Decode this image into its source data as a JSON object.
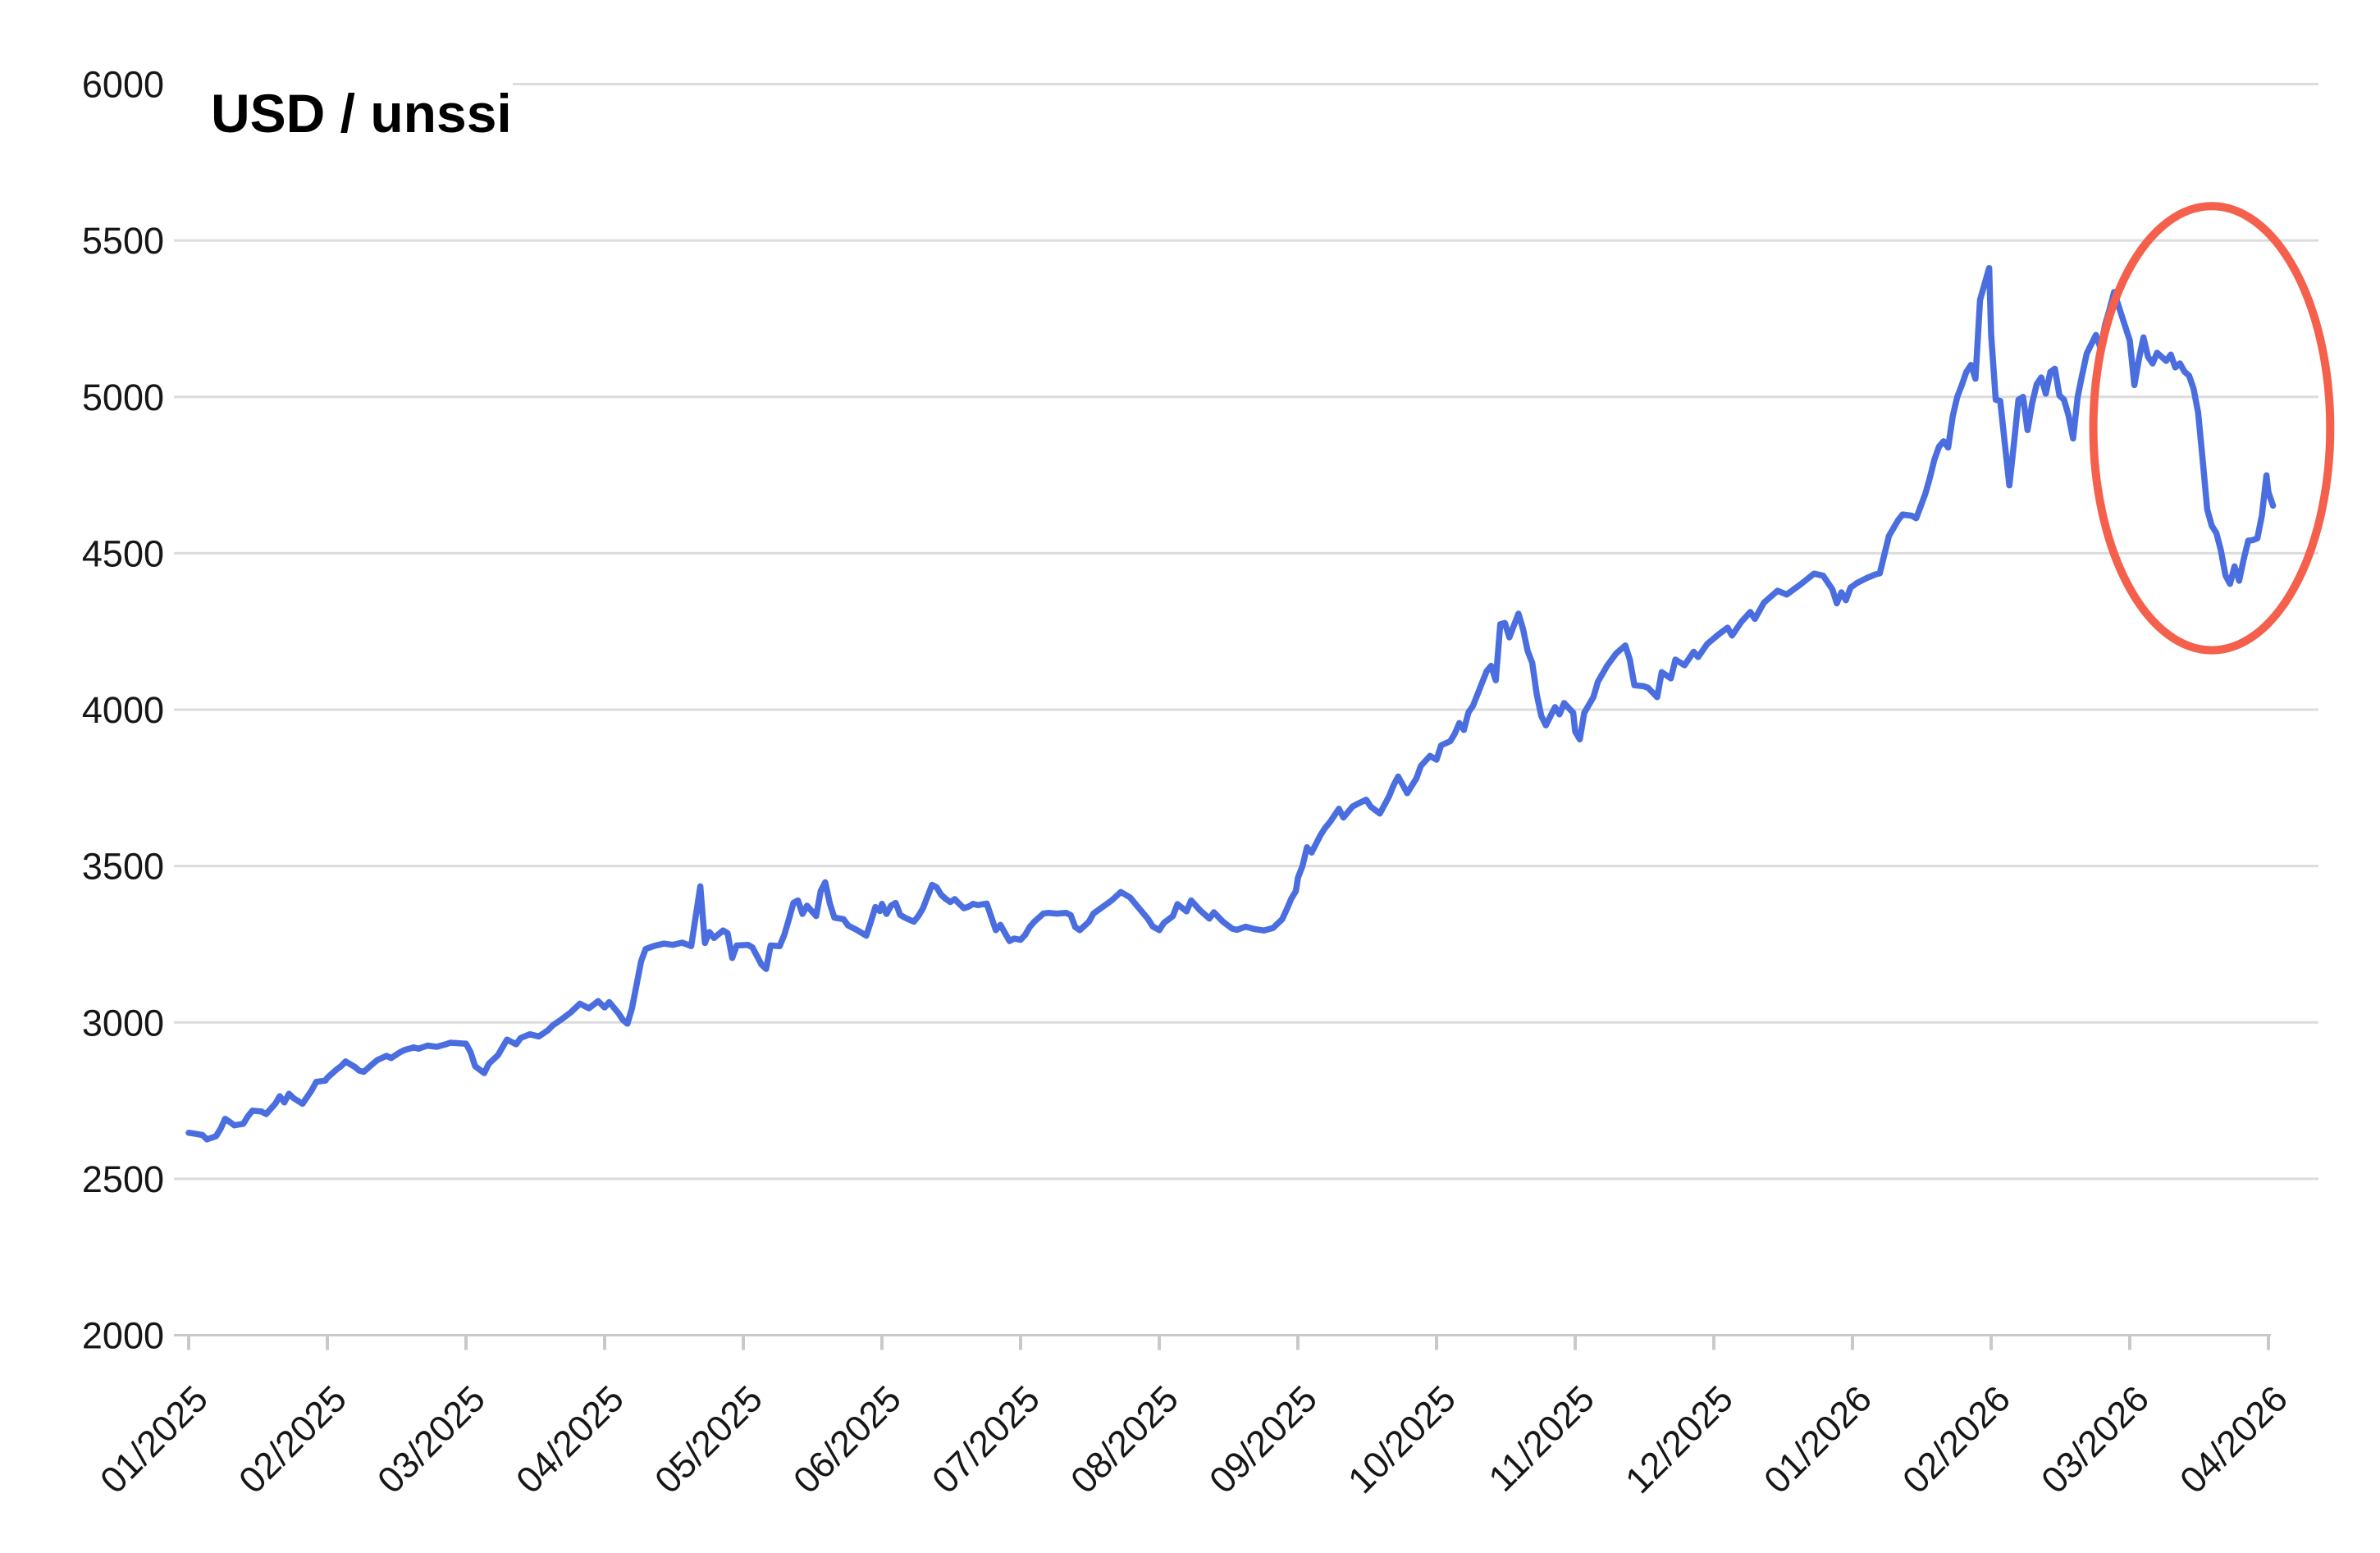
{
  "title": "USD / unssi",
  "colors": {
    "line": "#4a6ee0",
    "annotation": "#f4604c",
    "grid": "#dcdcdc",
    "axis": "#c9c9c9",
    "label_text": "#161616",
    "title_text": "#000000",
    "background": "#ffffff"
  },
  "chart_data": {
    "type": "line",
    "title": "USD / unssi",
    "xlabel": "",
    "ylabel": "",
    "ylim": [
      2000,
      6000
    ],
    "y_ticks": [
      6000,
      5500,
      5000,
      4500,
      4000,
      3500,
      3000,
      2500,
      2000
    ],
    "x_tick_labels": [
      "01/2025",
      "02/2025",
      "03/2025",
      "04/2025",
      "05/2025",
      "06/2025",
      "07/2025",
      "08/2025",
      "09/2025",
      "10/2025",
      "11/2025",
      "12/2025",
      "01/2026",
      "02/2026",
      "03/2026",
      "04/2026"
    ],
    "grid": "horizontal",
    "legend": "none",
    "annotation_ellipse": {
      "center_date": "2026-03-19",
      "center_value": 4900,
      "radius_days": 26,
      "radius_value": 710,
      "color": "#f4604c",
      "stroke_width": 10
    },
    "points": [
      [
        "2025-01-01",
        2647
      ],
      [
        "2025-01-02",
        2645
      ],
      [
        "2025-01-04",
        2640
      ],
      [
        "2025-01-05",
        2626
      ],
      [
        "2025-01-07",
        2636
      ],
      [
        "2025-01-08",
        2660
      ],
      [
        "2025-01-09",
        2692
      ],
      [
        "2025-01-10",
        2682
      ],
      [
        "2025-01-11",
        2671
      ],
      [
        "2025-01-13",
        2676
      ],
      [
        "2025-01-14",
        2700
      ],
      [
        "2025-01-15",
        2718
      ],
      [
        "2025-01-17",
        2715
      ],
      [
        "2025-01-18",
        2707
      ],
      [
        "2025-01-20",
        2740
      ],
      [
        "2025-01-21",
        2764
      ],
      [
        "2025-01-22",
        2744
      ],
      [
        "2025-01-23",
        2772
      ],
      [
        "2025-01-24",
        2758
      ],
      [
        "2025-01-26",
        2740
      ],
      [
        "2025-01-28",
        2783
      ],
      [
        "2025-01-29",
        2810
      ],
      [
        "2025-01-31",
        2814
      ],
      [
        "2025-02-01",
        2823
      ],
      [
        "2025-02-03",
        2849
      ],
      [
        "2025-02-04",
        2860
      ],
      [
        "2025-02-05",
        2875
      ],
      [
        "2025-02-07",
        2858
      ],
      [
        "2025-02-08",
        2846
      ],
      [
        "2025-02-09",
        2842
      ],
      [
        "2025-02-11",
        2868
      ],
      [
        "2025-02-12",
        2880
      ],
      [
        "2025-02-14",
        2893
      ],
      [
        "2025-02-15",
        2886
      ],
      [
        "2025-02-17",
        2905
      ],
      [
        "2025-02-18",
        2912
      ],
      [
        "2025-02-20",
        2920
      ],
      [
        "2025-02-21",
        2916
      ],
      [
        "2025-02-23",
        2926
      ],
      [
        "2025-02-25",
        2922
      ],
      [
        "2025-02-27",
        2930
      ],
      [
        "2025-02-28",
        2935
      ],
      [
        "2025-03-01",
        2932
      ],
      [
        "2025-03-02",
        2905
      ],
      [
        "2025-03-03",
        2860
      ],
      [
        "2025-03-05",
        2838
      ],
      [
        "2025-03-06",
        2868
      ],
      [
        "2025-03-08",
        2895
      ],
      [
        "2025-03-09",
        2920
      ],
      [
        "2025-03-10",
        2945
      ],
      [
        "2025-03-12",
        2930
      ],
      [
        "2025-03-13",
        2950
      ],
      [
        "2025-03-15",
        2962
      ],
      [
        "2025-03-17",
        2955
      ],
      [
        "2025-03-19",
        2975
      ],
      [
        "2025-03-20",
        2990
      ],
      [
        "2025-03-22",
        3010
      ],
      [
        "2025-03-24",
        3032
      ],
      [
        "2025-03-26",
        3060
      ],
      [
        "2025-03-28",
        3045
      ],
      [
        "2025-03-30",
        3068
      ],
      [
        "2025-04-01",
        3048
      ],
      [
        "2025-04-02",
        3065
      ],
      [
        "2025-04-04",
        3030
      ],
      [
        "2025-04-05",
        3008
      ],
      [
        "2025-04-06",
        2996
      ],
      [
        "2025-04-07",
        3045
      ],
      [
        "2025-04-08",
        3120
      ],
      [
        "2025-04-09",
        3195
      ],
      [
        "2025-04-10",
        3235
      ],
      [
        "2025-04-12",
        3245
      ],
      [
        "2025-04-14",
        3252
      ],
      [
        "2025-04-16",
        3248
      ],
      [
        "2025-04-18",
        3255
      ],
      [
        "2025-04-20",
        3244
      ],
      [
        "2025-04-22",
        3435
      ],
      [
        "2025-04-23",
        3254
      ],
      [
        "2025-04-24",
        3289
      ],
      [
        "2025-04-25",
        3270
      ],
      [
        "2025-04-27",
        3294
      ],
      [
        "2025-04-28",
        3285
      ],
      [
        "2025-04-29",
        3206
      ],
      [
        "2025-04-30",
        3246
      ],
      [
        "2025-05-02",
        3248
      ],
      [
        "2025-05-03",
        3240
      ],
      [
        "2025-05-05",
        3185
      ],
      [
        "2025-05-06",
        3171
      ],
      [
        "2025-05-07",
        3246
      ],
      [
        "2025-05-09",
        3244
      ],
      [
        "2025-05-10",
        3280
      ],
      [
        "2025-05-11",
        3329
      ],
      [
        "2025-05-12",
        3382
      ],
      [
        "2025-05-13",
        3390
      ],
      [
        "2025-05-14",
        3347
      ],
      [
        "2025-05-15",
        3373
      ],
      [
        "2025-05-17",
        3340
      ],
      [
        "2025-05-18",
        3420
      ],
      [
        "2025-05-19",
        3448
      ],
      [
        "2025-05-20",
        3380
      ],
      [
        "2025-05-21",
        3335
      ],
      [
        "2025-05-23",
        3330
      ],
      [
        "2025-05-24",
        3310
      ],
      [
        "2025-05-26",
        3295
      ],
      [
        "2025-05-28",
        3277
      ],
      [
        "2025-05-29",
        3322
      ],
      [
        "2025-05-30",
        3369
      ],
      [
        "2025-05-31",
        3356
      ],
      [
        "2025-06-01",
        3379
      ],
      [
        "2025-06-02",
        3347
      ],
      [
        "2025-06-03",
        3373
      ],
      [
        "2025-06-04",
        3382
      ],
      [
        "2025-06-05",
        3344
      ],
      [
        "2025-06-06",
        3335
      ],
      [
        "2025-06-08",
        3322
      ],
      [
        "2025-06-09",
        3340
      ],
      [
        "2025-06-10",
        3365
      ],
      [
        "2025-06-12",
        3440
      ],
      [
        "2025-06-13",
        3432
      ],
      [
        "2025-06-14",
        3408
      ],
      [
        "2025-06-15",
        3395
      ],
      [
        "2025-06-16",
        3385
      ],
      [
        "2025-06-17",
        3394
      ],
      [
        "2025-06-18",
        3379
      ],
      [
        "2025-06-19",
        3365
      ],
      [
        "2025-06-20",
        3370
      ],
      [
        "2025-06-21",
        3379
      ],
      [
        "2025-06-22",
        3375
      ],
      [
        "2025-06-24",
        3380
      ],
      [
        "2025-06-26",
        3295
      ],
      [
        "2025-06-27",
        3312
      ],
      [
        "2025-06-29",
        3260
      ],
      [
        "2025-06-30",
        3268
      ],
      [
        "2025-07-01",
        3264
      ],
      [
        "2025-07-02",
        3280
      ],
      [
        "2025-07-03",
        3305
      ],
      [
        "2025-07-04",
        3322
      ],
      [
        "2025-07-06",
        3348
      ],
      [
        "2025-07-07",
        3350
      ],
      [
        "2025-07-09",
        3348
      ],
      [
        "2025-07-11",
        3350
      ],
      [
        "2025-07-12",
        3343
      ],
      [
        "2025-07-13",
        3305
      ],
      [
        "2025-07-14",
        3295
      ],
      [
        "2025-07-16",
        3322
      ],
      [
        "2025-07-17",
        3348
      ],
      [
        "2025-07-19",
        3369
      ],
      [
        "2025-07-21",
        3390
      ],
      [
        "2025-07-23",
        3417
      ],
      [
        "2025-07-25",
        3400
      ],
      [
        "2025-07-27",
        3365
      ],
      [
        "2025-07-29",
        3330
      ],
      [
        "2025-07-30",
        3307
      ],
      [
        "2025-08-01",
        3295
      ],
      [
        "2025-08-02",
        3318
      ],
      [
        "2025-08-04",
        3340
      ],
      [
        "2025-08-05",
        3378
      ],
      [
        "2025-08-07",
        3355
      ],
      [
        "2025-08-08",
        3390
      ],
      [
        "2025-08-10",
        3358
      ],
      [
        "2025-08-12",
        3332
      ],
      [
        "2025-08-13",
        3352
      ],
      [
        "2025-08-15",
        3322
      ],
      [
        "2025-08-17",
        3300
      ],
      [
        "2025-08-18",
        3296
      ],
      [
        "2025-08-20",
        3306
      ],
      [
        "2025-08-22",
        3298
      ],
      [
        "2025-08-24",
        3294
      ],
      [
        "2025-08-26",
        3302
      ],
      [
        "2025-08-28",
        3330
      ],
      [
        "2025-08-29",
        3362
      ],
      [
        "2025-08-30",
        3396
      ],
      [
        "2025-08-31",
        3420
      ],
      [
        "2025-09-01",
        3462
      ],
      [
        "2025-09-02",
        3500
      ],
      [
        "2025-09-03",
        3560
      ],
      [
        "2025-09-04",
        3543
      ],
      [
        "2025-09-06",
        3600
      ],
      [
        "2025-09-07",
        3622
      ],
      [
        "2025-09-08",
        3640
      ],
      [
        "2025-09-10",
        3683
      ],
      [
        "2025-09-11",
        3655
      ],
      [
        "2025-09-13",
        3690
      ],
      [
        "2025-09-14",
        3698
      ],
      [
        "2025-09-16",
        3712
      ],
      [
        "2025-09-17",
        3690
      ],
      [
        "2025-09-19",
        3668
      ],
      [
        "2025-09-21",
        3722
      ],
      [
        "2025-09-22",
        3758
      ],
      [
        "2025-09-23",
        3786
      ],
      [
        "2025-09-24",
        3760
      ],
      [
        "2025-09-25",
        3733
      ],
      [
        "2025-09-27",
        3780
      ],
      [
        "2025-09-28",
        3820
      ],
      [
        "2025-09-30",
        3852
      ],
      [
        "2025-10-01",
        3840
      ],
      [
        "2025-10-02",
        3886
      ],
      [
        "2025-10-04",
        3899
      ],
      [
        "2025-10-05",
        3923
      ],
      [
        "2025-10-06",
        3957
      ],
      [
        "2025-10-07",
        3935
      ],
      [
        "2025-10-08",
        3991
      ],
      [
        "2025-10-09",
        4012
      ],
      [
        "2025-10-12",
        4123
      ],
      [
        "2025-10-13",
        4140
      ],
      [
        "2025-10-14",
        4094
      ],
      [
        "2025-10-15",
        4273
      ],
      [
        "2025-10-16",
        4277
      ],
      [
        "2025-10-17",
        4231
      ],
      [
        "2025-10-18",
        4270
      ],
      [
        "2025-10-19",
        4307
      ],
      [
        "2025-10-20",
        4257
      ],
      [
        "2025-10-21",
        4188
      ],
      [
        "2025-10-22",
        4150
      ],
      [
        "2025-10-23",
        4048
      ],
      [
        "2025-10-24",
        3980
      ],
      [
        "2025-10-25",
        3950
      ],
      [
        "2025-10-27",
        4008
      ],
      [
        "2025-10-28",
        3985
      ],
      [
        "2025-10-29",
        4021
      ],
      [
        "2025-10-31",
        3990
      ],
      [
        "2025-11-01",
        3930
      ],
      [
        "2025-11-02",
        3905
      ],
      [
        "2025-11-03",
        3990
      ],
      [
        "2025-11-05",
        4040
      ],
      [
        "2025-11-06",
        4090
      ],
      [
        "2025-11-08",
        4140
      ],
      [
        "2025-11-10",
        4180
      ],
      [
        "2025-11-12",
        4205
      ],
      [
        "2025-11-13",
        4160
      ],
      [
        "2025-11-14",
        4078
      ],
      [
        "2025-11-16",
        4075
      ],
      [
        "2025-11-17",
        4070
      ],
      [
        "2025-11-19",
        4040
      ],
      [
        "2025-11-20",
        4120
      ],
      [
        "2025-11-22",
        4100
      ],
      [
        "2025-11-23",
        4160
      ],
      [
        "2025-11-25",
        4142
      ],
      [
        "2025-11-27",
        4185
      ],
      [
        "2025-11-28",
        4168
      ],
      [
        "2025-11-30",
        4210
      ],
      [
        "2025-12-02",
        4240
      ],
      [
        "2025-12-04",
        4262
      ],
      [
        "2025-12-05",
        4237
      ],
      [
        "2025-12-07",
        4280
      ],
      [
        "2025-12-09",
        4312
      ],
      [
        "2025-12-10",
        4290
      ],
      [
        "2025-12-12",
        4342
      ],
      [
        "2025-12-15",
        4380
      ],
      [
        "2025-12-17",
        4368
      ],
      [
        "2025-12-20",
        4400
      ],
      [
        "2025-12-23",
        4435
      ],
      [
        "2025-12-25",
        4428
      ],
      [
        "2025-12-27",
        4385
      ],
      [
        "2025-12-28",
        4340
      ],
      [
        "2025-12-29",
        4375
      ],
      [
        "2025-12-30",
        4350
      ],
      [
        "2025-12-31",
        4390
      ],
      [
        "2026-01-02",
        4405
      ],
      [
        "2026-01-04",
        4420
      ],
      [
        "2026-01-06",
        4432
      ],
      [
        "2026-01-07",
        4436
      ],
      [
        "2026-01-09",
        4555
      ],
      [
        "2026-01-11",
        4605
      ],
      [
        "2026-01-12",
        4624
      ],
      [
        "2026-01-14",
        4620
      ],
      [
        "2026-01-15",
        4612
      ],
      [
        "2026-01-17",
        4690
      ],
      [
        "2026-01-18",
        4742
      ],
      [
        "2026-01-19",
        4800
      ],
      [
        "2026-01-20",
        4841
      ],
      [
        "2026-01-21",
        4858
      ],
      [
        "2026-01-22",
        4838
      ],
      [
        "2026-01-23",
        4938
      ],
      [
        "2026-01-24",
        5000
      ],
      [
        "2026-01-25",
        5038
      ],
      [
        "2026-01-26",
        5080
      ],
      [
        "2026-01-27",
        5102
      ],
      [
        "2026-01-28",
        5058
      ],
      [
        "2026-01-29",
        5310
      ],
      [
        "2026-01-31",
        5412
      ],
      [
        "2026-02-01",
        5200
      ],
      [
        "2026-02-02",
        4991
      ],
      [
        "2026-02-03",
        4987
      ],
      [
        "2026-02-04",
        4850
      ],
      [
        "2026-02-05",
        4717
      ],
      [
        "2026-02-06",
        4850
      ],
      [
        "2026-02-07",
        4991
      ],
      [
        "2026-02-08",
        5000
      ],
      [
        "2026-02-09",
        4894
      ],
      [
        "2026-02-10",
        4980
      ],
      [
        "2026-02-11",
        5040
      ],
      [
        "2026-02-12",
        5062
      ],
      [
        "2026-02-13",
        5010
      ],
      [
        "2026-02-14",
        5080
      ],
      [
        "2026-02-15",
        5090
      ],
      [
        "2026-02-16",
        5004
      ],
      [
        "2026-02-17",
        4991
      ],
      [
        "2026-02-18",
        4940
      ],
      [
        "2026-02-19",
        4867
      ],
      [
        "2026-02-20",
        5000
      ],
      [
        "2026-02-21",
        5071
      ],
      [
        "2026-02-22",
        5139
      ],
      [
        "2026-02-24",
        5198
      ],
      [
        "2026-02-25",
        5156
      ],
      [
        "2026-02-26",
        5230
      ],
      [
        "2026-02-27",
        5280
      ],
      [
        "2026-02-28",
        5335
      ],
      [
        "2026-03-01",
        5180
      ],
      [
        "2026-03-02",
        5038
      ],
      [
        "2026-03-03",
        5120
      ],
      [
        "2026-03-04",
        5190
      ],
      [
        "2026-03-05",
        5128
      ],
      [
        "2026-03-06",
        5107
      ],
      [
        "2026-03-07",
        5141
      ],
      [
        "2026-03-09",
        5115
      ],
      [
        "2026-03-10",
        5135
      ],
      [
        "2026-03-11",
        5094
      ],
      [
        "2026-03-12",
        5107
      ],
      [
        "2026-03-13",
        5081
      ],
      [
        "2026-03-14",
        5068
      ],
      [
        "2026-03-15",
        5027
      ],
      [
        "2026-03-16",
        4950
      ],
      [
        "2026-03-17",
        4800
      ],
      [
        "2026-03-18",
        4640
      ],
      [
        "2026-03-19",
        4588
      ],
      [
        "2026-03-20",
        4565
      ],
      [
        "2026-03-21",
        4510
      ],
      [
        "2026-03-22",
        4430
      ],
      [
        "2026-03-23",
        4402
      ],
      [
        "2026-03-24",
        4458
      ],
      [
        "2026-03-25",
        4412
      ],
      [
        "2026-03-26",
        4480
      ],
      [
        "2026-03-27",
        4540
      ],
      [
        "2026-03-28",
        4542
      ],
      [
        "2026-03-29",
        4548
      ],
      [
        "2026-03-30",
        4620
      ],
      [
        "2026-03-31",
        4749
      ],
      [
        "2026-04-01",
        4695
      ],
      [
        "2026-04-02",
        4652
      ]
    ]
  }
}
